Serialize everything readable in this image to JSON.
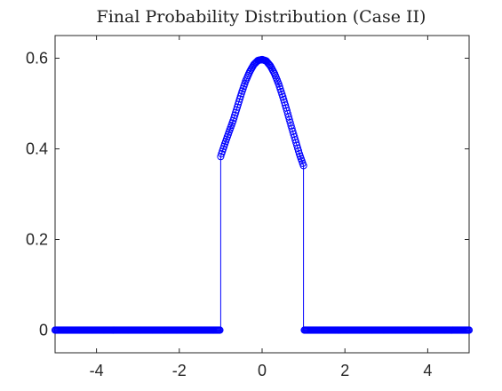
{
  "chart_data": {
    "type": "line",
    "title": "Final Probability Distribution (Case II)",
    "xlabel": "",
    "ylabel": "",
    "xlim": [
      -5,
      5
    ],
    "ylim": [
      -0.05,
      0.65
    ],
    "x_ticks": [
      -4,
      -2,
      0,
      2,
      4
    ],
    "x_tick_labels": [
      "-4",
      "-2",
      "0",
      "2",
      "4"
    ],
    "y_ticks": [
      0,
      0.2,
      0.4,
      0.6
    ],
    "y_tick_labels": [
      "0",
      "0.2",
      "0.4",
      "0.6"
    ],
    "grid": false,
    "legend": "none",
    "series_color": "#0000ff",
    "marker": "circle",
    "x_step": 0.02,
    "description_of_data": "piecewise curve: 0 for |x|>1, bell-shaped between -1 and 1",
    "series": [
      {
        "x": [
          -5,
          -4.5,
          -4,
          -3.5,
          -3,
          -2.5,
          -2,
          -1.5,
          -1.0,
          -1.0,
          -0.98,
          -0.9,
          -0.8,
          -0.7,
          -0.6,
          -0.5,
          -0.4,
          -0.3,
          -0.2,
          -0.1,
          0,
          0.1,
          0.2,
          0.3,
          0.4,
          0.5,
          0.6,
          0.7,
          0.8,
          0.9,
          0.98,
          1.0,
          1.0,
          1.5,
          2,
          2.5,
          3,
          3.5,
          4,
          4.5,
          5
        ],
        "y": [
          0,
          0,
          0,
          0,
          0,
          0,
          0,
          0,
          0,
          0.383,
          0.389,
          0.411,
          0.437,
          0.462,
          0.492,
          0.522,
          0.549,
          0.57,
          0.586,
          0.595,
          0.597,
          0.594,
          0.583,
          0.566,
          0.543,
          0.515,
          0.484,
          0.451,
          0.42,
          0.389,
          0.368,
          0.363,
          0,
          0,
          0,
          0,
          0,
          0,
          0,
          0,
          0
        ]
      }
    ]
  }
}
